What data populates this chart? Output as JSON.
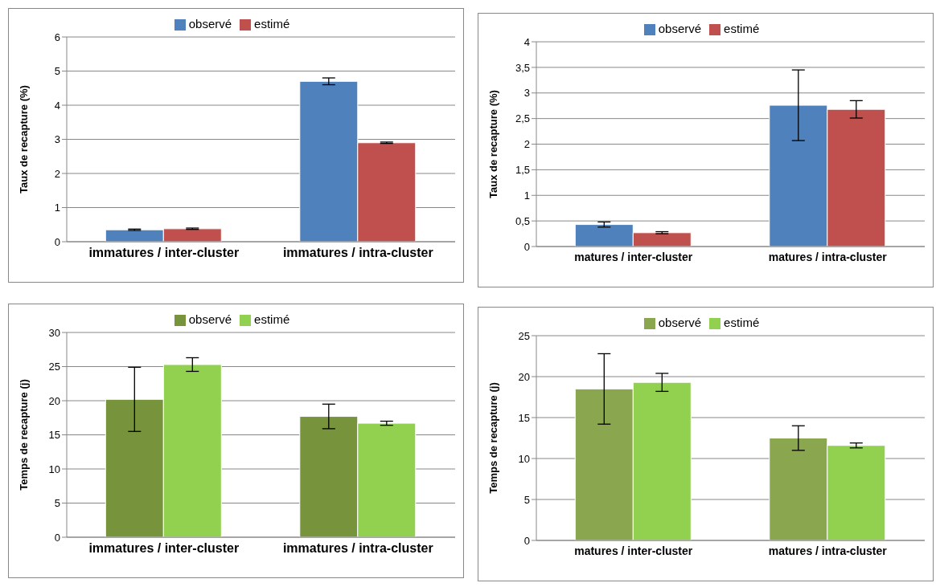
{
  "chart_data": [
    {
      "type": "bar",
      "ylabel": "Taux de recapture (%)",
      "categories": [
        "immatures / inter-cluster",
        "immatures / intra-cluster"
      ],
      "ylim": [
        0,
        6
      ],
      "yticks": [
        0,
        1,
        2,
        3,
        4,
        5,
        6
      ],
      "grid": "y",
      "legend": "top",
      "series": [
        {
          "name": "observé",
          "color": "#4f81bd",
          "values": [
            0.35,
            4.7
          ],
          "errors": [
            0.02,
            0.1
          ]
        },
        {
          "name": "estimé",
          "color": "#c0504d",
          "values": [
            0.38,
            2.9
          ],
          "errors": [
            0.02,
            0.02
          ]
        }
      ]
    },
    {
      "type": "bar",
      "ylabel": "Taux de recapture (%)",
      "categories": [
        "matures / inter-cluster",
        "matures / intra-cluster"
      ],
      "ylim": [
        0,
        4
      ],
      "yticks": [
        0,
        {
          "value": 0.5,
          "label": "0,5"
        },
        1,
        {
          "value": 1.5,
          "label": "1,5"
        },
        2,
        {
          "value": 2.5,
          "label": "2,5"
        },
        3,
        {
          "value": 3.5,
          "label": "3,5"
        },
        4
      ],
      "grid": "y",
      "legend": "top",
      "series": [
        {
          "name": "observé",
          "color": "#4f81bd",
          "values": [
            0.43,
            2.76
          ],
          "errors": [
            0.05,
            0.69
          ]
        },
        {
          "name": "estimé",
          "color": "#c0504d",
          "values": [
            0.27,
            2.68
          ],
          "errors": [
            0.02,
            0.17
          ]
        }
      ]
    },
    {
      "type": "bar",
      "ylabel": "Temps de recapture (j)",
      "categories": [
        "immatures / inter-cluster",
        "immatures / intra-cluster"
      ],
      "ylim": [
        0,
        30
      ],
      "yticks": [
        0,
        5,
        10,
        15,
        20,
        25,
        30
      ],
      "grid": "y",
      "legend": "top",
      "series": [
        {
          "name": "observé",
          "color": "#77933c",
          "values": [
            20.2,
            17.7
          ],
          "errors": [
            4.7,
            1.8
          ]
        },
        {
          "name": "estimé",
          "color": "#92d050",
          "values": [
            25.3,
            16.7
          ],
          "errors": [
            1,
            0.3
          ]
        }
      ]
    },
    {
      "type": "bar",
      "ylabel": "Temps de recapture (j)",
      "categories": [
        "matures / inter-cluster",
        "matures / intra-cluster"
      ],
      "ylim": [
        0,
        25
      ],
      "yticks": [
        0,
        5,
        10,
        15,
        20,
        25
      ],
      "grid": "y",
      "legend": "top",
      "series": [
        {
          "name": "observé",
          "color": "#8aa64e",
          "values": [
            18.5,
            12.5
          ],
          "errors": [
            4.3,
            1.5
          ]
        },
        {
          "name": "estimé",
          "color": "#92d050",
          "values": [
            19.3,
            11.6
          ],
          "errors": [
            1.1,
            0.3
          ]
        }
      ]
    }
  ]
}
